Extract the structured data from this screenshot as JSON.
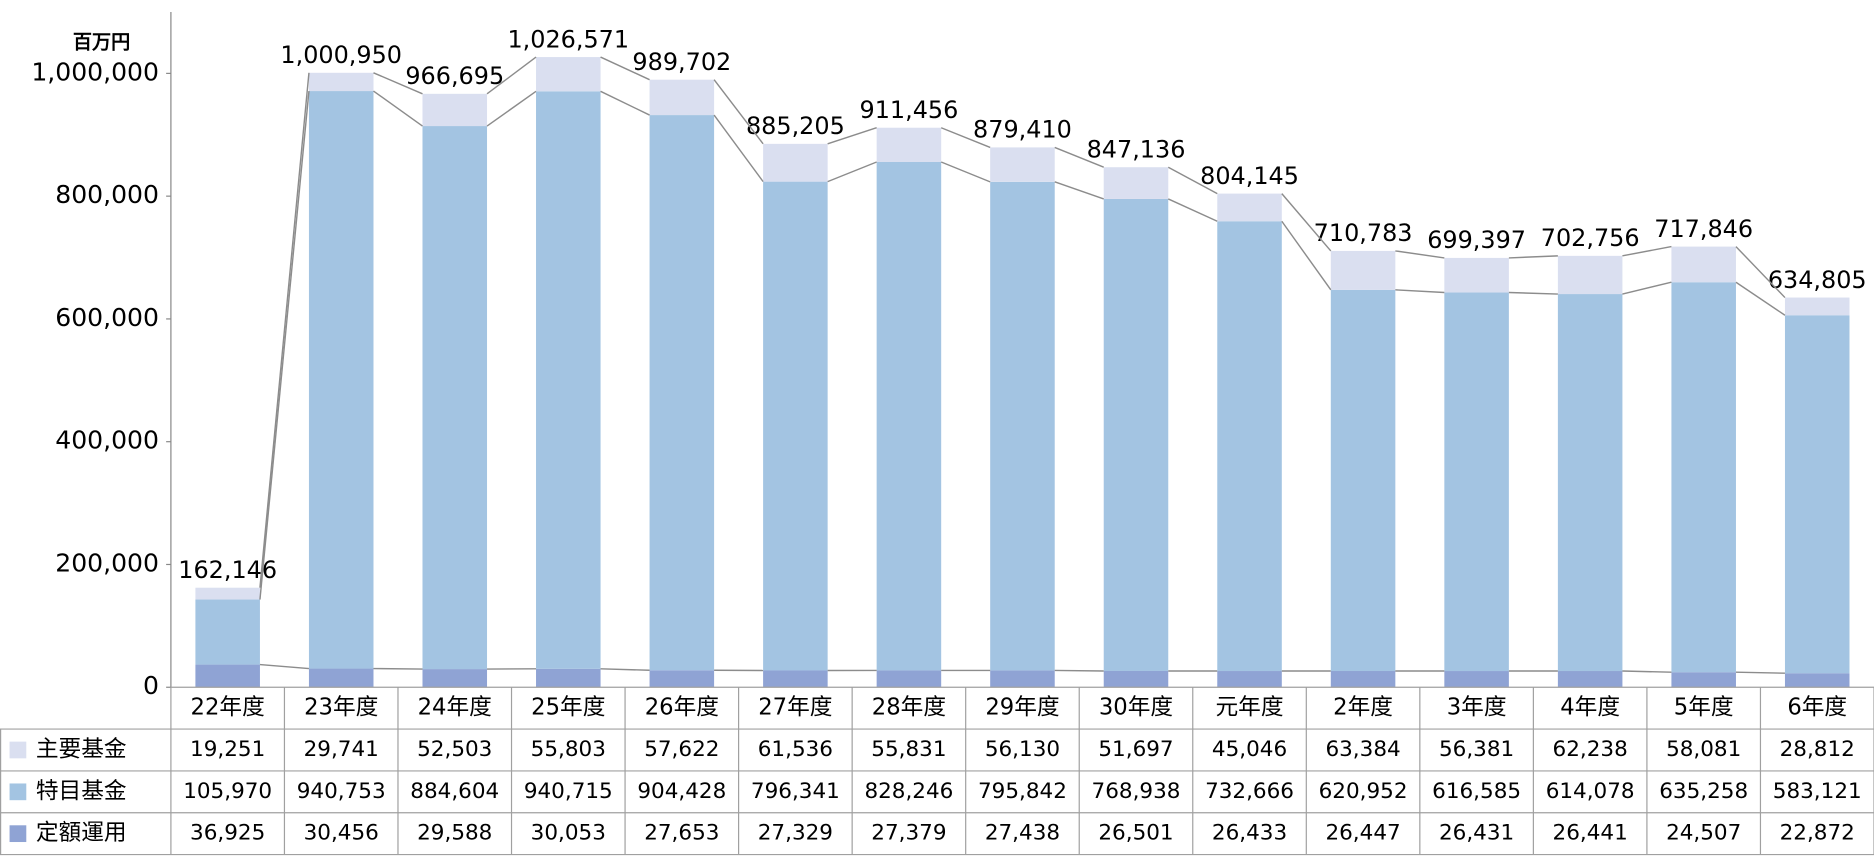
{
  "chart_data": {
    "type": "stacked_bar",
    "unit_label": "百万円",
    "categories": [
      "22年度",
      "23年度",
      "24年度",
      "25年度",
      "26年度",
      "27年度",
      "28年度",
      "29年度",
      "30年度",
      "元年度",
      "2年度",
      "3年度",
      "4年度",
      "5年度",
      "6年度"
    ],
    "series": [
      {
        "name": "主要基金",
        "color": "#dadff0",
        "values": [
          19251,
          29741,
          52503,
          55803,
          57622,
          61536,
          55831,
          56130,
          51697,
          45046,
          63384,
          56381,
          62238,
          58081,
          28812
        ],
        "value_labels": [
          "19,251",
          "29,741",
          "52,503",
          "55,803",
          "57,622",
          "61,536",
          "55,831",
          "56,130",
          "51,697",
          "45,046",
          "63,384",
          "56,381",
          "62,238",
          "58,081",
          "28,812"
        ]
      },
      {
        "name": "特目基金",
        "color": "#a3c4e2",
        "values": [
          105970,
          940753,
          884604,
          940715,
          904428,
          796341,
          828246,
          795842,
          768938,
          732666,
          620952,
          616585,
          614078,
          635258,
          583121
        ],
        "value_labels": [
          "105,970",
          "940,753",
          "884,604",
          "940,715",
          "904,428",
          "796,341",
          "828,246",
          "795,842",
          "768,938",
          "732,666",
          "620,952",
          "616,585",
          "614,078",
          "635,258",
          "583,121"
        ]
      },
      {
        "name": "定額運用",
        "color": "#8fa3d4",
        "values": [
          36925,
          30456,
          29588,
          30053,
          27653,
          27329,
          27379,
          27438,
          26501,
          26433,
          26447,
          26431,
          26441,
          24507,
          22872
        ],
        "value_labels": [
          "36,925",
          "30,456",
          "29,588",
          "30,053",
          "27,653",
          "27,329",
          "27,379",
          "27,438",
          "26,501",
          "26,433",
          "26,447",
          "26,431",
          "26,441",
          "24,507",
          "22,872"
        ]
      }
    ],
    "totals": [
      162146,
      1000950,
      966695,
      1026571,
      989702,
      885205,
      911456,
      879410,
      847136,
      804145,
      710783,
      699397,
      702756,
      717846,
      634805
    ],
    "total_labels": [
      "162,146",
      "1,000,950",
      "966,695",
      "1,026,571",
      "989,702",
      "885,205",
      "911,456",
      "879,410",
      "847,136",
      "804,145",
      "710,783",
      "699,397",
      "702,756",
      "717,846",
      "634,805"
    ],
    "ylim": [
      0,
      1100000
    ],
    "yticks": [
      0,
      {
        "value": 200000,
        "label": "200,000"
      },
      {
        "value": 400000,
        "label": "400,000"
      },
      {
        "value": 600000,
        "label": "600,000"
      },
      {
        "value": 800000,
        "label": "800,000"
      },
      {
        "value": 1000000,
        "label": "1,000,000"
      }
    ],
    "series_lines_color": "#8c8c8c",
    "grid": false
  }
}
